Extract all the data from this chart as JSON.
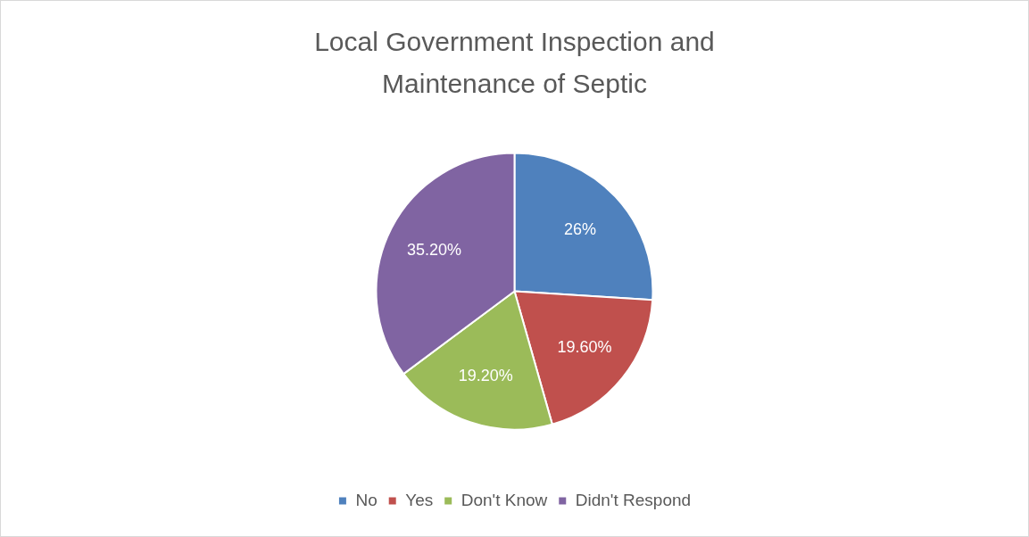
{
  "chart_data": {
    "type": "pie",
    "title": "Local Government Inspection and Maintenance of Septic",
    "categories": [
      "No",
      "Yes",
      "Don't Know",
      "Didn't Respond"
    ],
    "values": [
      26,
      19.6,
      19.2,
      35.2
    ],
    "colors": [
      "#4f81bd",
      "#c0504d",
      "#9bbb59",
      "#8064a2"
    ],
    "value_labels": [
      "26%",
      "19.60%",
      "19.20%",
      "35.20%"
    ],
    "legend": "bottom"
  }
}
